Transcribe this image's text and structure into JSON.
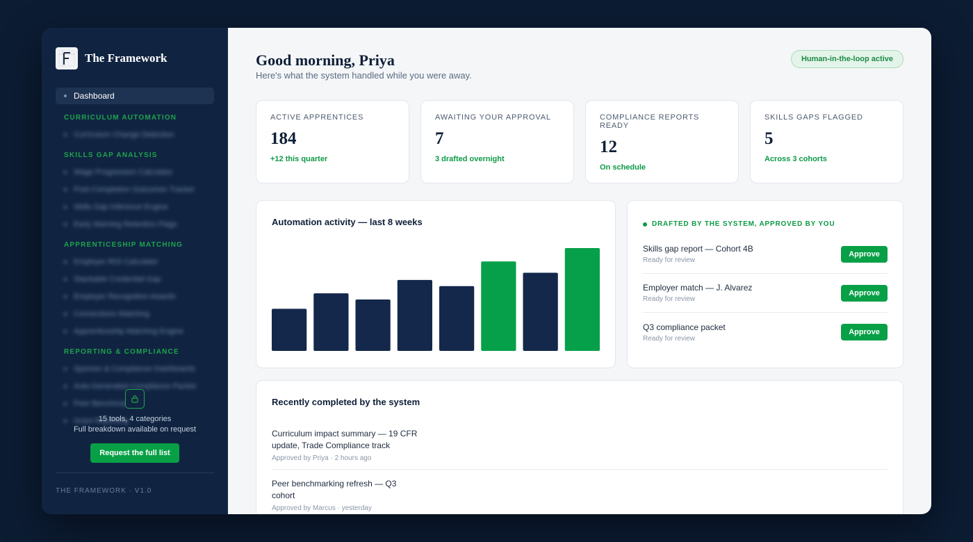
{
  "app": {
    "name": "The Framework",
    "version_label": "THE FRAMEWORK · V1.0"
  },
  "sidebar": {
    "active_item": "Dashboard",
    "sections": [
      {
        "title": "CURRICULUM AUTOMATION",
        "items": [
          "Curriculum Change Detection"
        ]
      },
      {
        "title": "SKILLS GAP ANALYSIS",
        "items": [
          "Wage Progression Calculator",
          "Post-Completion Outcomes Tracker",
          "Skills Gap Inference Engine",
          "Early Warning Retention Flags"
        ]
      },
      {
        "title": "APPRENTICESHIP MATCHING",
        "items": [
          "Employer ROI Calculator",
          "Stackable Credential Gap",
          "Employer Recognition Awards",
          "Connections Matching",
          "Apprenticeship Matching Engine"
        ]
      },
      {
        "title": "REPORTING & COMPLIANCE",
        "items": [
          "Sponsor & Compliance Dashboards",
          "Auto-Generated Compliance Packet",
          "Peer Benchmarking",
          "Grant Reporting"
        ]
      }
    ],
    "locked": {
      "line1": "15 tools, 4 categories",
      "line2": "Full breakdown available on request",
      "button": "Request the full list"
    }
  },
  "header": {
    "greeting": "Good morning, Priya",
    "subtitle": "Here's what the system handled while you were away.",
    "badge": "Human-in-the-loop active"
  },
  "stats": [
    {
      "label": "ACTIVE APPRENTICES",
      "value": "184",
      "sub": "+12 this quarter"
    },
    {
      "label": "AWAITING YOUR APPROVAL",
      "value": "7",
      "sub": "3 drafted overnight"
    },
    {
      "label": "COMPLIANCE REPORTS READY",
      "value": "12",
      "sub": "On schedule"
    },
    {
      "label": "SKILLS GAPS FLAGGED",
      "value": "5",
      "sub": "Across 3 cohorts"
    }
  ],
  "chart_data": {
    "type": "bar",
    "title": "Automation activity — last 8 weeks",
    "categories": [
      "",
      "",
      "",
      "",
      "",
      "",
      "",
      ""
    ],
    "values": [
      41,
      56,
      50,
      69,
      63,
      87,
      76,
      100
    ],
    "highlight": [
      false,
      false,
      false,
      false,
      false,
      true,
      false,
      true
    ],
    "ylim": [
      0,
      100
    ],
    "colors": {
      "default": "#14284b",
      "highlight": "#05a049"
    }
  },
  "approvals": {
    "header": "DRAFTED BY THE SYSTEM, APPROVED BY YOU",
    "items": [
      {
        "title": "Skills gap report — Cohort 4B",
        "status": "Ready for review",
        "button": "Approve"
      },
      {
        "title": "Employer match — J. Alvarez",
        "status": "Ready for review",
        "button": "Approve"
      },
      {
        "title": "Q3 compliance packet",
        "status": "Ready for review",
        "button": "Approve"
      }
    ]
  },
  "recent": {
    "title": "Recently completed by the system",
    "items": [
      {
        "title": "Curriculum impact summary — 19 CFR update, Trade Compliance track",
        "meta": "Approved by Priya · 2 hours ago"
      },
      {
        "title": "Peer benchmarking refresh — Q3 cohort",
        "meta": "Approved by Marcus · yesterday"
      }
    ]
  },
  "icons": {
    "logo": "framework-logo-icon",
    "lock": "lock-icon"
  },
  "colors": {
    "accent": "#08a046",
    "sidebar_bg": "#102442",
    "page_bg": "#0c1c33"
  }
}
